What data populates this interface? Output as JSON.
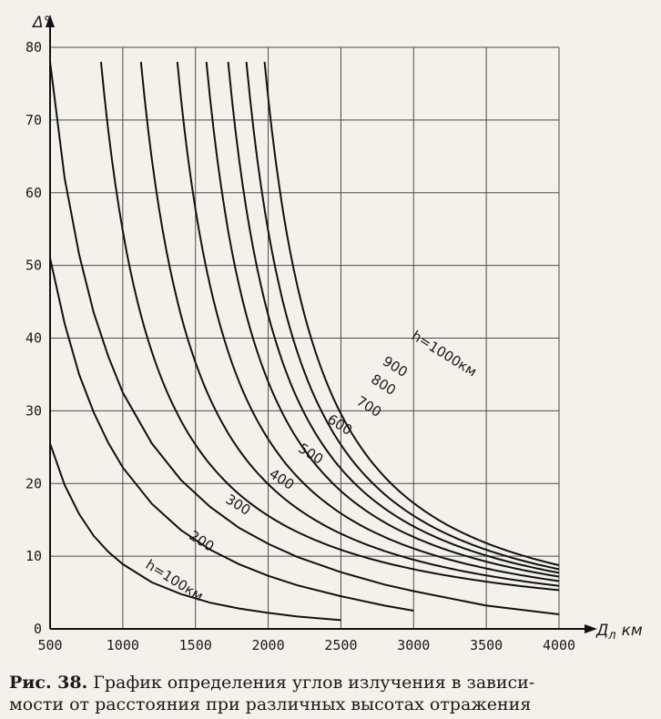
{
  "chart_data": {
    "type": "line",
    "title": "",
    "xlabel": "Д",
    "xlabel_sub": "л",
    "xunit": "км",
    "ylabel": "Δ°",
    "xlim": [
      500,
      4000
    ],
    "ylim": [
      0,
      80
    ],
    "x_ticks": [
      "500",
      "1000",
      "1500",
      "2000",
      "2500",
      "3000",
      "3500",
      "4000"
    ],
    "y_ticks": [
      "0",
      "10",
      "20",
      "30",
      "40",
      "50",
      "60",
      "70",
      "80"
    ],
    "grid": true,
    "series": [
      {
        "name": "h=100км",
        "label": "h=100км",
        "label_at": [
          1150,
          8.5
        ],
        "points": [
          [
            500,
            25.5
          ],
          [
            600,
            19.8
          ],
          [
            700,
            15.8
          ],
          [
            800,
            12.8
          ],
          [
            900,
            10.6
          ],
          [
            1000,
            8.9
          ],
          [
            1200,
            6.4
          ],
          [
            1400,
            4.8
          ],
          [
            1600,
            3.6
          ],
          [
            1800,
            2.8
          ],
          [
            2000,
            2.2
          ],
          [
            2200,
            1.7
          ],
          [
            2500,
            1.2
          ]
        ]
      },
      {
        "name": "200",
        "label": "200",
        "label_at": [
          1450,
          12.5
        ],
        "points": [
          [
            500,
            51
          ],
          [
            600,
            42
          ],
          [
            700,
            35
          ],
          [
            800,
            29.8
          ],
          [
            900,
            25.6
          ],
          [
            1000,
            22.2
          ],
          [
            1200,
            17.2
          ],
          [
            1400,
            13.6
          ],
          [
            1600,
            10.9
          ],
          [
            1800,
            8.9
          ],
          [
            2000,
            7.3
          ],
          [
            2200,
            6
          ],
          [
            2500,
            4.5
          ],
          [
            2800,
            3.2
          ],
          [
            3000,
            2.5
          ]
        ]
      },
      {
        "name": "300",
        "label": "300",
        "label_at": [
          1700,
          17.5
        ],
        "points": [
          [
            500,
            78
          ],
          [
            600,
            62
          ],
          [
            700,
            51.5
          ],
          [
            800,
            43.5
          ],
          [
            900,
            37.5
          ],
          [
            1000,
            32.5
          ],
          [
            1200,
            25.5
          ],
          [
            1400,
            20.5
          ],
          [
            1600,
            16.8
          ],
          [
            1800,
            13.9
          ],
          [
            2000,
            11.7
          ],
          [
            2200,
            9.9
          ],
          [
            2500,
            7.8
          ],
          [
            2800,
            6.1
          ],
          [
            3000,
            5.2
          ],
          [
            3500,
            3.2
          ],
          [
            4000,
            2
          ]
        ]
      },
      {
        "name": "400",
        "label": "400",
        "label_at": [
          2000,
          21
        ]
      },
      {
        "name": "500",
        "label": "500",
        "label_at": [
          2200,
          24.5
        ]
      },
      {
        "name": "600",
        "label": "600",
        "label_at": [
          2400,
          28.5
        ]
      },
      {
        "name": "700",
        "label": "700",
        "label_at": [
          2600,
          31
        ]
      },
      {
        "name": "800",
        "label": "800",
        "label_at": [
          2700,
          34
        ]
      },
      {
        "name": "900",
        "label": "900",
        "label_at": [
          2780,
          36.5
        ]
      },
      {
        "name": "h=1000км",
        "label": "h=1000км",
        "label_at": [
          2980,
          40
        ]
      }
    ]
  },
  "caption": {
    "prefix": "Рис. 38.",
    "line1": "График определения углов излучения в зависи-",
    "line2": "мости от расстояния при различных высотах отражения"
  }
}
